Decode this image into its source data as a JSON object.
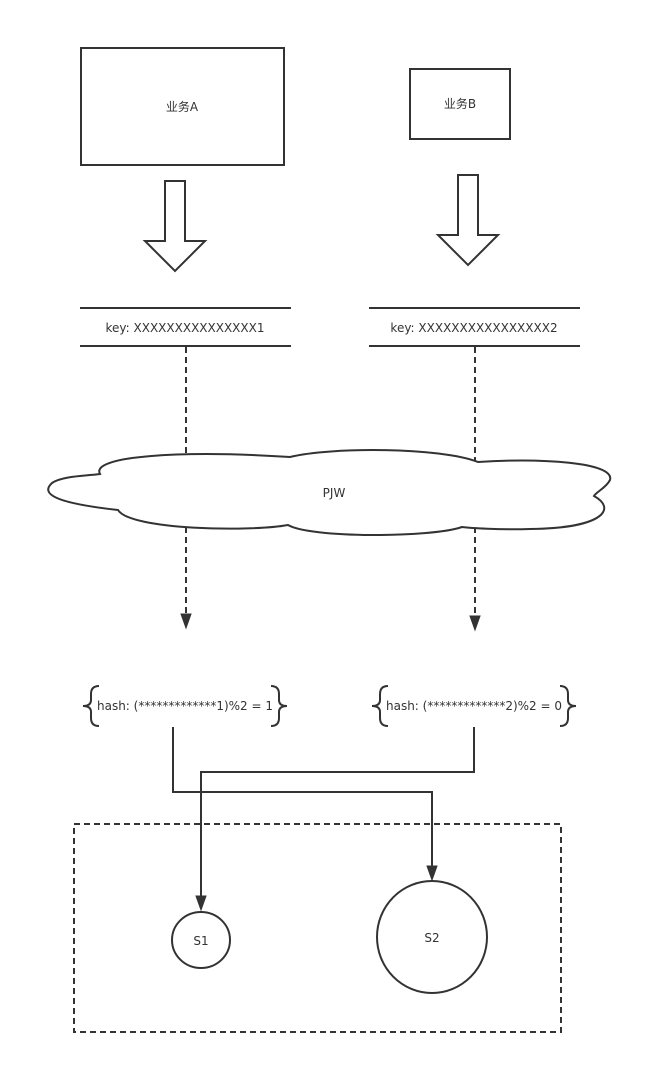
{
  "services": [
    {
      "label": "业务A"
    },
    {
      "label": "业务B"
    }
  ],
  "keys": [
    {
      "label": "key: XXXXXXXXXXXXXXX1"
    },
    {
      "label": "key: XXXXXXXXXXXXXXXX2"
    }
  ],
  "cloud": {
    "label": "PJW"
  },
  "hashes": [
    {
      "label": "hash: (*************1)%2 = 1"
    },
    {
      "label": "hash: (*************2)%2 = 0"
    }
  ],
  "servers": [
    {
      "label": "S1"
    },
    {
      "label": "S2"
    }
  ]
}
